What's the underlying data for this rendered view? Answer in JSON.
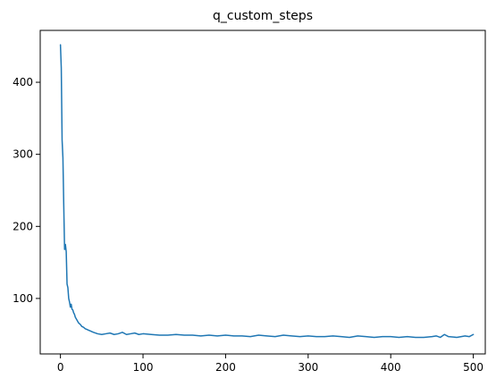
{
  "chart_data": {
    "type": "line",
    "title": "q_custom_steps",
    "xlabel": "",
    "ylabel": "",
    "xlim": [
      -24.5,
      514.5
    ],
    "ylim": [
      23,
      472
    ],
    "grid": false,
    "legend": "none",
    "line_color": "#1f77b4",
    "xticks": [
      0,
      100,
      200,
      300,
      400,
      500
    ],
    "xtick_labels": [
      "0",
      "100",
      "200",
      "300",
      "400",
      "500"
    ],
    "yticks": [
      100,
      200,
      300,
      400
    ],
    "ytick_labels": [
      "100",
      "200",
      "300",
      "400"
    ],
    "series": [
      {
        "name": "q_custom_steps",
        "x": [
          0,
          1,
          2,
          3,
          4,
          5,
          6,
          7,
          8,
          9,
          10,
          11,
          12,
          13,
          14,
          15,
          16,
          17,
          18,
          19,
          20,
          22,
          24,
          26,
          28,
          30,
          32,
          34,
          36,
          38,
          40,
          45,
          50,
          55,
          60,
          65,
          70,
          75,
          80,
          85,
          90,
          95,
          100,
          110,
          120,
          130,
          140,
          150,
          160,
          170,
          180,
          190,
          200,
          210,
          220,
          230,
          240,
          250,
          260,
          270,
          280,
          290,
          300,
          310,
          320,
          330,
          340,
          350,
          360,
          370,
          380,
          390,
          400,
          410,
          420,
          430,
          440,
          450,
          455,
          460,
          465,
          470,
          480,
          490,
          495,
          500
        ],
        "y": [
          452,
          420,
          320,
          295,
          230,
          168,
          175,
          165,
          120,
          115,
          100,
          95,
          88,
          92,
          85,
          84,
          80,
          78,
          74,
          72,
          70,
          66,
          64,
          61,
          60,
          58,
          57,
          56,
          55,
          54,
          53,
          51,
          50,
          51,
          52,
          50,
          51,
          53,
          50,
          51,
          52,
          50,
          51,
          50,
          49,
          49,
          50,
          49,
          49,
          48,
          49,
          48,
          49,
          48,
          48,
          47,
          49,
          48,
          47,
          49,
          48,
          47,
          48,
          47,
          47,
          48,
          47,
          46,
          48,
          47,
          46,
          47,
          47,
          46,
          47,
          46,
          46,
          47,
          48,
          46,
          50,
          47,
          46,
          48,
          47,
          50
        ]
      }
    ]
  }
}
